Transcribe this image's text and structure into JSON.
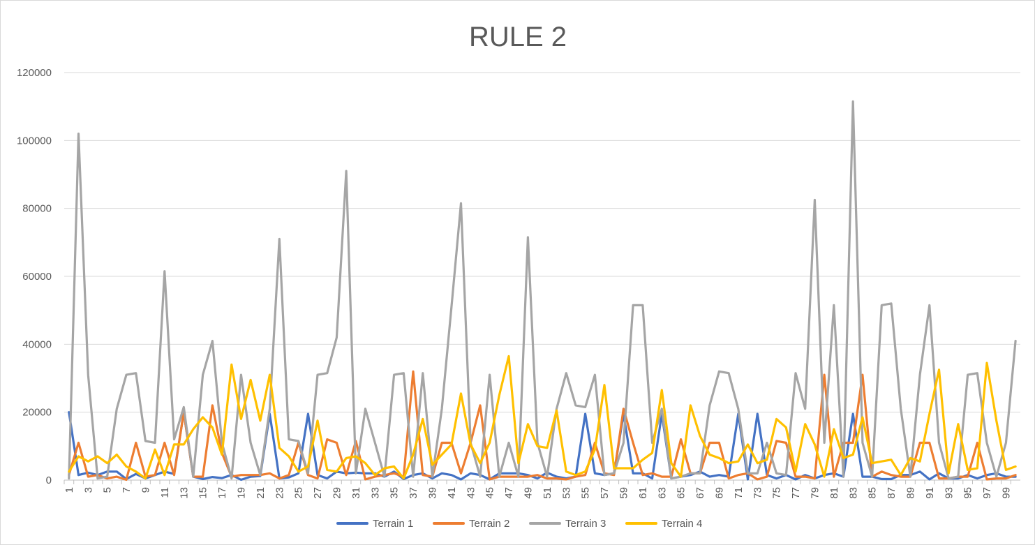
{
  "chart_data": {
    "type": "line",
    "title": "RULE 2",
    "xlabel": "",
    "ylabel": "",
    "ylim": [
      0,
      120000
    ],
    "yticks": [
      0,
      20000,
      40000,
      60000,
      80000,
      100000,
      120000
    ],
    "x": [
      1,
      2,
      3,
      4,
      5,
      6,
      7,
      8,
      9,
      10,
      11,
      12,
      13,
      14,
      15,
      16,
      17,
      18,
      19,
      20,
      21,
      22,
      23,
      24,
      25,
      26,
      27,
      28,
      29,
      30,
      31,
      32,
      33,
      34,
      35,
      36,
      37,
      38,
      39,
      40,
      41,
      42,
      43,
      44,
      45,
      46,
      47,
      48,
      49,
      50,
      51,
      52,
      53,
      54,
      55,
      56,
      57,
      58,
      59,
      60,
      61,
      62,
      63,
      64,
      65,
      66,
      67,
      68,
      69,
      70,
      71,
      72,
      73,
      74,
      75,
      76,
      77,
      78,
      79,
      80,
      81,
      82,
      83,
      84,
      85,
      86,
      87,
      88,
      89,
      90,
      91,
      92,
      93,
      94,
      95,
      96,
      97,
      98,
      99,
      100
    ],
    "xtick_labels": [
      1,
      3,
      5,
      7,
      9,
      11,
      13,
      15,
      17,
      19,
      21,
      23,
      25,
      27,
      29,
      31,
      33,
      35,
      37,
      39,
      41,
      43,
      45,
      47,
      49,
      51,
      53,
      55,
      57,
      59,
      61,
      63,
      65,
      67,
      69,
      71,
      73,
      75,
      77,
      79,
      81,
      83,
      85,
      87,
      89,
      91,
      93,
      95,
      97,
      99
    ],
    "grid": true,
    "legend_position": "bottom",
    "series": [
      {
        "name": "Terrain 1",
        "color": "#4472c4",
        "values": [
          20000,
          1500,
          2200,
          1500,
          2500,
          2500,
          300,
          1800,
          500,
          1500,
          2500,
          1800,
          20000,
          1000,
          300,
          900,
          600,
          1500,
          100,
          1000,
          1200,
          19500,
          500,
          800,
          2000,
          19500,
          1500,
          500,
          2500,
          2000,
          2200,
          2000,
          2000,
          1000,
          2500,
          300,
          1500,
          2000,
          500,
          2000,
          1500,
          200,
          2000,
          1500,
          200,
          2000,
          2000,
          2000,
          1500,
          500,
          2200,
          1000,
          500,
          1000,
          19500,
          2000,
          1500,
          2000,
          19500,
          2000,
          2000,
          500,
          19500,
          500,
          1000,
          1500,
          2500,
          1000,
          1500,
          1000,
          19500,
          200,
          19500,
          1500,
          500,
          1500,
          200,
          1500,
          500,
          1500,
          2000,
          1000,
          19500,
          1000,
          1000,
          300,
          300,
          1500,
          1500,
          2500,
          200,
          2000,
          500,
          500,
          1500,
          500,
          1500,
          2000,
          1000,
          1000
        ]
      },
      {
        "name": "Terrain 2",
        "color": "#ed7d31",
        "values": [
          1500,
          11000,
          1000,
          1500,
          500,
          1000,
          100,
          11000,
          1000,
          1500,
          11000,
          1500,
          20000,
          1000,
          1000,
          22000,
          8000,
          1000,
          1500,
          1500,
          1500,
          2000,
          500,
          1500,
          11000,
          1500,
          500,
          12000,
          11000,
          1500,
          11500,
          200,
          1000,
          1500,
          2000,
          1000,
          32000,
          1500,
          1000,
          11000,
          11000,
          2000,
          11000,
          22000,
          200,
          1000,
          1000,
          1000,
          1000,
          1500,
          500,
          500,
          200,
          1000,
          1500,
          11000,
          2000,
          1500,
          21000,
          11000,
          1500,
          2000,
          1000,
          1000,
          12000,
          2000,
          2000,
          11000,
          11000,
          500,
          1500,
          2000,
          200,
          1000,
          11500,
          11000,
          1000,
          1000,
          500,
          31000,
          1000,
          11000,
          11000,
          31000,
          1000,
          2500,
          1500,
          1000,
          1000,
          11000,
          11000,
          500,
          500,
          1000,
          1000,
          11000,
          200,
          500,
          500,
          1500
        ]
      },
      {
        "name": "Terrain 3",
        "color": "#a5a5a5",
        "values": [
          500,
          102000,
          31000,
          500,
          1000,
          21000,
          31000,
          31500,
          11500,
          11000,
          61500,
          12000,
          21500,
          1000,
          31000,
          41000,
          11000,
          500,
          31000,
          11000,
          1500,
          21000,
          71000,
          12000,
          11500,
          2000,
          31000,
          31500,
          42000,
          91000,
          2000,
          21000,
          11000,
          1000,
          31000,
          31500,
          1000,
          31500,
          1000,
          21000,
          51000,
          81500,
          11000,
          1000,
          31000,
          1000,
          11000,
          1000,
          71500,
          11000,
          1000,
          21000,
          31500,
          22000,
          21500,
          31000,
          1500,
          2000,
          11000,
          51500,
          51500,
          11000,
          21000,
          500,
          1000,
          2000,
          2000,
          22000,
          32000,
          31500,
          21000,
          2000,
          2000,
          11000,
          2000,
          1500,
          31500,
          21000,
          82500,
          11000,
          51500,
          1000,
          111500,
          11000,
          1000,
          51500,
          52000,
          21000,
          1000,
          31000,
          51500,
          11000,
          500,
          1000,
          31000,
          31500,
          11000,
          1000,
          11000,
          41000
        ]
      },
      {
        "name": "Terrain 4",
        "color": "#ffc000",
        "values": [
          2500,
          7000,
          5500,
          7000,
          5000,
          7500,
          4000,
          2500,
          500,
          9000,
          1500,
          10500,
          10500,
          15000,
          18500,
          15500,
          7500,
          34000,
          18000,
          29500,
          17500,
          31000,
          9500,
          7000,
          2500,
          4000,
          17500,
          3000,
          2500,
          6500,
          7000,
          5000,
          1500,
          3500,
          4000,
          500,
          7500,
          18000,
          4500,
          7500,
          10500,
          25500,
          10500,
          5000,
          11000,
          25000,
          36500,
          5000,
          16500,
          10000,
          9500,
          20500,
          2500,
          1500,
          2500,
          9000,
          28000,
          3500,
          3500,
          3500,
          6000,
          8000,
          26500,
          5000,
          1000,
          22000,
          13000,
          7500,
          6500,
          5000,
          5500,
          10500,
          5000,
          6000,
          18000,
          15500,
          2500,
          16500,
          10500,
          1000,
          15000,
          6500,
          7500,
          18500,
          5000,
          5500,
          6000,
          1500,
          6500,
          5500,
          19500,
          32500,
          2000,
          16500,
          3000,
          3500,
          34500,
          17500,
          3000,
          4000
        ]
      }
    ]
  }
}
